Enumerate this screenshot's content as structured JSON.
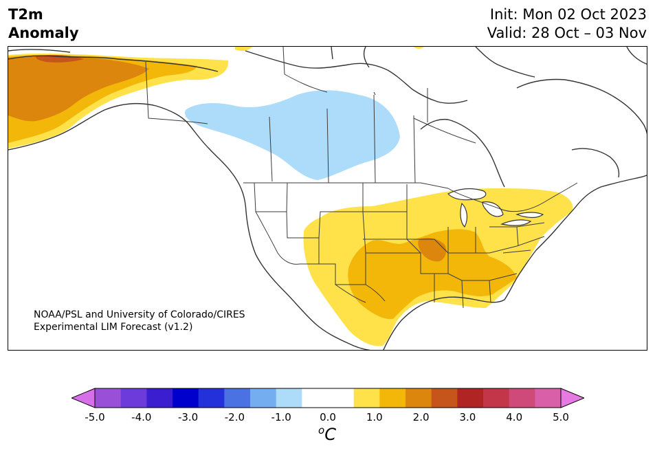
{
  "header": {
    "title_line1": "T2m",
    "title_line2": "Anomaly",
    "init": "Init: Mon 02 Oct 2023",
    "valid": "Valid: 28 Oct – 03 Nov"
  },
  "credit": {
    "line1": "NOAA/PSL and University of Colorado/CIRES",
    "line2": "Experimental LIM Forecast (v1.2)"
  },
  "colorbar": {
    "unit_base": "C",
    "unit_sup": "o",
    "tick_labels": [
      "-5.0",
      "-4.0",
      "-3.0",
      "-2.0",
      "-1.0",
      "0.0",
      "1.0",
      "2.0",
      "3.0",
      "4.0",
      "5.0"
    ],
    "colors": [
      "#9a4fd8",
      "#6c3bd9",
      "#3b1ecf",
      "#0000cd",
      "#2231d9",
      "#4a72e3",
      "#74aef0",
      "#addcfa",
      "#ffffff",
      "#ffffff",
      "#ffe24a",
      "#f3b70a",
      "#dd860d",
      "#c5551a",
      "#b02424",
      "#c33548",
      "#cf4a79",
      "#d95fa8"
    ],
    "under_color": "#d670e8",
    "over_color": "#e77ae0"
  },
  "map": {
    "region": "North America",
    "colors": {
      "cold_1": "#addcfa",
      "warm_1": "#ffe24a",
      "warm_2": "#f3b70a",
      "warm_3": "#dd860d",
      "warm_4": "#c5551a",
      "coast": "#333333",
      "border": "#3a3a3a"
    }
  }
}
